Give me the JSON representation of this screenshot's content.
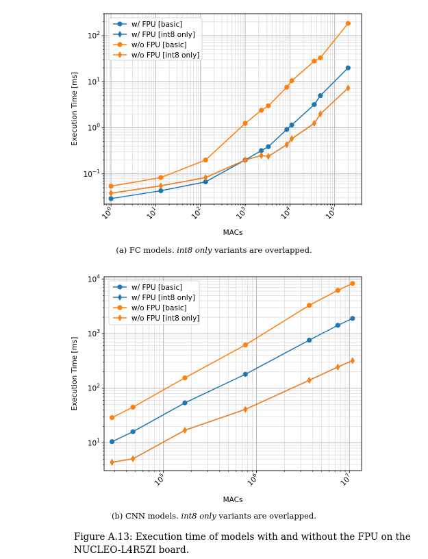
{
  "chart_data": [
    {
      "type": "line",
      "xscale": "log",
      "yscale": "log",
      "xlim": [
        0.7,
        400000
      ],
      "ylim": [
        0.022,
        300
      ],
      "xlabel": "MACs",
      "ylabel": "Execution Time [ms]",
      "xticks": [
        {
          "v": 1,
          "base": "10",
          "exp": "0"
        },
        {
          "v": 10,
          "base": "10",
          "exp": "1"
        },
        {
          "v": 100,
          "base": "10",
          "exp": "2"
        },
        {
          "v": 1000,
          "base": "10",
          "exp": "3"
        },
        {
          "v": 10000,
          "base": "10",
          "exp": "4"
        },
        {
          "v": 100000,
          "base": "10",
          "exp": "5"
        }
      ],
      "yticks": [
        {
          "v": 0.1,
          "base": "10",
          "exp": "−1"
        },
        {
          "v": 1,
          "base": "10",
          "exp": "0"
        },
        {
          "v": 10,
          "base": "10",
          "exp": "1"
        },
        {
          "v": 100,
          "base": "10",
          "exp": "2"
        }
      ],
      "legend_position": "upper-left",
      "series": [
        {
          "name": "w/ FPU [basic]",
          "color": "#1f77b4",
          "marker": "circle",
          "x": [
            1,
            13,
            130,
            1000,
            2300,
            3300,
            8500,
            11000,
            35000,
            48000,
            200000
          ],
          "y": [
            0.029,
            0.043,
            0.067,
            0.2,
            0.32,
            0.39,
            0.92,
            1.15,
            3.2,
            5.0,
            20
          ]
        },
        {
          "name": "w/ FPU [int8 only]",
          "color": "#1f77b4",
          "marker": "diamond",
          "x": [
            1,
            13,
            130,
            1000,
            2300,
            3300,
            8500,
            11000,
            35000,
            48000,
            200000
          ],
          "y": [
            0.038,
            0.055,
            0.083,
            0.2,
            0.25,
            0.24,
            0.43,
            0.58,
            1.25,
            2.0,
            7.3
          ]
        },
        {
          "name": "w/o FPU [basic]",
          "color": "#ff7f0e",
          "marker": "circle",
          "x": [
            1,
            13,
            130,
            1000,
            2300,
            3300,
            8500,
            11000,
            35000,
            48000,
            200000
          ],
          "y": [
            0.054,
            0.083,
            0.2,
            1.25,
            2.4,
            3.0,
            7.6,
            10.5,
            28,
            33,
            185
          ]
        },
        {
          "name": "w/o FPU [int8 only]",
          "color": "#ff7f0e",
          "marker": "diamond",
          "x": [
            1,
            13,
            130,
            1000,
            2300,
            3300,
            8500,
            11000,
            35000,
            48000,
            200000
          ],
          "y": [
            0.038,
            0.055,
            0.083,
            0.2,
            0.25,
            0.24,
            0.43,
            0.58,
            1.25,
            2.0,
            7.3
          ]
        }
      ]
    },
    {
      "type": "line",
      "xscale": "log",
      "yscale": "log",
      "xlim": [
        23000,
        13500000
      ],
      "ylim": [
        3.1,
        11000
      ],
      "xlabel": "MACs",
      "ylabel": "Execution Time [ms]",
      "xticks": [
        {
          "v": 100000,
          "base": "10",
          "exp": "5"
        },
        {
          "v": 1000000,
          "base": "10",
          "exp": "6"
        },
        {
          "v": 10000000,
          "base": "10",
          "exp": "7"
        }
      ],
      "yticks": [
        {
          "v": 10,
          "base": "10",
          "exp": "1"
        },
        {
          "v": 100,
          "base": "10",
          "exp": "2"
        },
        {
          "v": 1000,
          "base": "10",
          "exp": "3"
        },
        {
          "v": 10000,
          "base": "10",
          "exp": "4"
        }
      ],
      "legend_position": "upper-left",
      "series": [
        {
          "name": "w/ FPU [basic]",
          "color": "#1f77b4",
          "marker": "circle",
          "x": [
            28000,
            47000,
            170000,
            760000,
            3700000,
            7500000,
            10800000
          ],
          "y": [
            10.5,
            16,
            54,
            180,
            760,
            1420,
            1900
          ]
        },
        {
          "name": "w/ FPU [int8 only]",
          "color": "#1f77b4",
          "marker": "diamond",
          "x": [
            28000,
            47000,
            170000,
            760000,
            3700000,
            7500000,
            10800000
          ],
          "y": [
            4.4,
            5.1,
            17,
            41,
            140,
            245,
            320
          ]
        },
        {
          "name": "w/o FPU [basic]",
          "color": "#ff7f0e",
          "marker": "circle",
          "x": [
            28000,
            47000,
            170000,
            760000,
            3700000,
            7500000,
            10800000
          ],
          "y": [
            29,
            45,
            155,
            620,
            3300,
            6200,
            8300
          ]
        },
        {
          "name": "w/o FPU [int8 only]",
          "color": "#ff7f0e",
          "marker": "diamond",
          "x": [
            28000,
            47000,
            170000,
            760000,
            3700000,
            7500000,
            10800000
          ],
          "y": [
            4.4,
            5.1,
            17,
            41,
            140,
            245,
            320
          ]
        }
      ]
    }
  ],
  "captions": {
    "a_label": "(a) FC models.",
    "a_em": "int8 only",
    "a_rest": "variants are overlapped.",
    "b_label": "(b) CNN models.",
    "b_em": "int8 only",
    "b_rest": "variants are overlapped.",
    "figure": "Figure A.13: Execution time of models with and without the FPU on the NUCLEO-L4R5ZI board."
  }
}
